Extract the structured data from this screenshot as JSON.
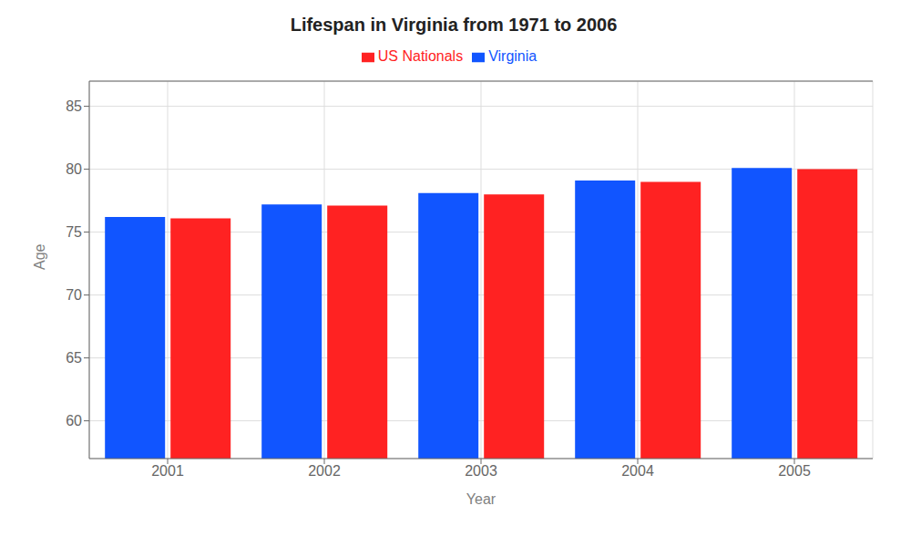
{
  "chart_data": {
    "type": "bar",
    "title": "Lifespan in Virginia from 1971 to 2006",
    "x_label": "Year",
    "y_label": "Age",
    "categories": [
      "2001",
      "2002",
      "2003",
      "2004",
      "2005"
    ],
    "series": [
      {
        "name": "Virginia",
        "color": "#1155ff",
        "values": [
          76.2,
          77.2,
          78.1,
          79.1,
          80.1
        ]
      },
      {
        "name": "US Nationals",
        "color": "#ff2222",
        "values": [
          76.1,
          77.1,
          78.0,
          79.0,
          80.0
        ]
      }
    ],
    "ylim": [
      57,
      87
    ],
    "yticks": [
      60,
      65,
      70,
      75,
      80,
      85
    ],
    "grid": true,
    "legend": "top"
  }
}
